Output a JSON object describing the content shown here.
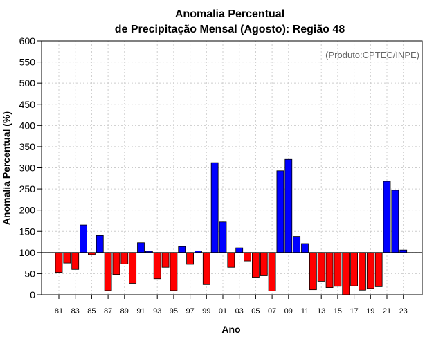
{
  "chart_data": {
    "type": "bar",
    "title_line1": "Anomalia Percentual",
    "title_line2": "de Precipitação Mensal (Agosto): Região 48",
    "xlabel": "Ano",
    "ylabel": "Anomalia Percentual (%)",
    "credit": "(Produto:CPTEC/INPE)",
    "baseline": 100,
    "ylim": [
      0,
      600
    ],
    "yticks": [
      0,
      50,
      100,
      150,
      200,
      250,
      300,
      350,
      400,
      450,
      500,
      550,
      600
    ],
    "grid": true,
    "colors": {
      "above": "#0000ff",
      "below": "#ff0000",
      "outline": "#000000",
      "grid": "#cccccc"
    },
    "categories": [
      "81",
      "82",
      "83",
      "84",
      "85",
      "86",
      "87",
      "88",
      "89",
      "90",
      "91",
      "92",
      "93",
      "94",
      "95",
      "96",
      "97",
      "98",
      "99",
      "00",
      "01",
      "02",
      "03",
      "04",
      "05",
      "06",
      "07",
      "08",
      "09",
      "10",
      "11",
      "12",
      "13",
      "14",
      "15",
      "16",
      "17",
      "18",
      "19",
      "20",
      "21",
      "22",
      "23"
    ],
    "xtick_labels": [
      "81",
      "83",
      "85",
      "87",
      "89",
      "91",
      "93",
      "95",
      "97",
      "99",
      "01",
      "03",
      "05",
      "07",
      "09",
      "11",
      "13",
      "15",
      "17",
      "19",
      "21",
      "23"
    ],
    "values": [
      53,
      75,
      60,
      165,
      95,
      140,
      10,
      48,
      73,
      27,
      123,
      103,
      38,
      65,
      10,
      114,
      72,
      104,
      24,
      312,
      172,
      65,
      111,
      80,
      40,
      45,
      9,
      293,
      320,
      138,
      121,
      12,
      32,
      17,
      20,
      0,
      21,
      11,
      15,
      19,
      268,
      247,
      106
    ]
  }
}
